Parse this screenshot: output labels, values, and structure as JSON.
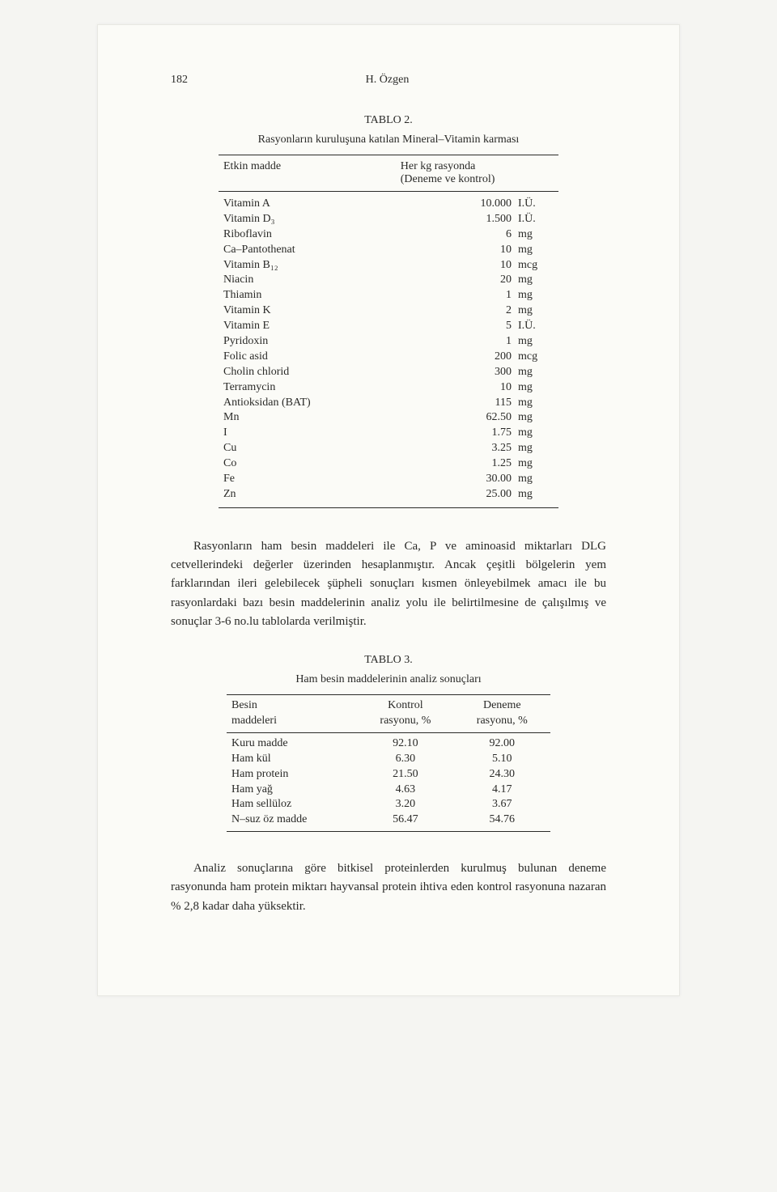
{
  "page_number": "182",
  "author": "H. Özgen",
  "table2": {
    "caption": "TABLO 2.",
    "subtitle": "Rasyonların kuruluşuna katılan Mineral–Vitamin karması",
    "header_left": "Etkin madde",
    "header_right": "Her kg rasyonda\n(Deneme ve kontrol)",
    "rows": [
      {
        "name": "Vitamin A",
        "value": "10.000",
        "unit": "I.Ü."
      },
      {
        "name": "Vitamin D₃",
        "value": "1.500",
        "unit": "I.Ü."
      },
      {
        "name": "Riboflavin",
        "value": "6",
        "unit": "mg"
      },
      {
        "name": "Ca–Pantothenat",
        "value": "10",
        "unit": "mg"
      },
      {
        "name": "Vitamin B₁₂",
        "value": "10",
        "unit": "mcg"
      },
      {
        "name": "Niacin",
        "value": "20",
        "unit": "mg"
      },
      {
        "name": "Thiamin",
        "value": "1",
        "unit": "mg"
      },
      {
        "name": "Vitamin K",
        "value": "2",
        "unit": "mg"
      },
      {
        "name": "Vitamin E",
        "value": "5",
        "unit": "I.Ü."
      },
      {
        "name": "Pyridoxin",
        "value": "1",
        "unit": "mg"
      },
      {
        "name": "Folic asid",
        "value": "200",
        "unit": "mcg"
      },
      {
        "name": "Cholin chlorid",
        "value": "300",
        "unit": "mg"
      },
      {
        "name": "Terramycin",
        "value": "10",
        "unit": "mg"
      },
      {
        "name": "Antioksidan (BAT)",
        "value": "115",
        "unit": "mg"
      },
      {
        "name": "Mn",
        "value": "62.50",
        "unit": "mg"
      },
      {
        "name": "I",
        "value": "1.75",
        "unit": "mg"
      },
      {
        "name": "Cu",
        "value": "3.25",
        "unit": "mg"
      },
      {
        "name": "Co",
        "value": "1.25",
        "unit": "mg"
      },
      {
        "name": "Fe",
        "value": "30.00",
        "unit": "mg"
      },
      {
        "name": "Zn",
        "value": "25.00",
        "unit": "mg"
      }
    ]
  },
  "paragraph1": "Rasyonların ham besin maddeleri ile Ca, P ve aminoasid miktarları DLG cetvellerindeki değerler üzerinden hesaplanmıştır. Ancak çeşitli bölgelerin yem farklarından ileri gelebilecek şüpheli sonuçları kısmen önleyebilmek amacı ile bu rasyonlardaki bazı besin maddelerinin analiz yolu ile belirtilmesine de çalışılmış ve sonuçlar 3-6 no.lu tablolarda verilmiştir.",
  "table3": {
    "caption": "TABLO 3.",
    "subtitle": "Ham besin maddelerinin analiz sonuçları",
    "header1": "Besin\nmaddeleri",
    "header2": "Kontrol\nrasyonu, %",
    "header3": "Deneme\nrasyonu, %",
    "rows": [
      {
        "name": "Kuru madde",
        "kontrol": "92.10",
        "deneme": "92.00"
      },
      {
        "name": "Ham kül",
        "kontrol": "6.30",
        "deneme": "5.10"
      },
      {
        "name": "Ham protein",
        "kontrol": "21.50",
        "deneme": "24.30"
      },
      {
        "name": "Ham yağ",
        "kontrol": "4.63",
        "deneme": "4.17"
      },
      {
        "name": "Ham sellüloz",
        "kontrol": "3.20",
        "deneme": "3.67"
      },
      {
        "name": "N–suz öz madde",
        "kontrol": "56.47",
        "deneme": "54.76"
      }
    ]
  },
  "paragraph2": "Analiz sonuçlarına göre bitkisel proteinlerden kurulmuş bulunan deneme rasyonunda ham protein miktarı hayvansal protein ihtiva eden kontrol rasyonuna nazaran % 2,8 kadar daha yüksektir."
}
